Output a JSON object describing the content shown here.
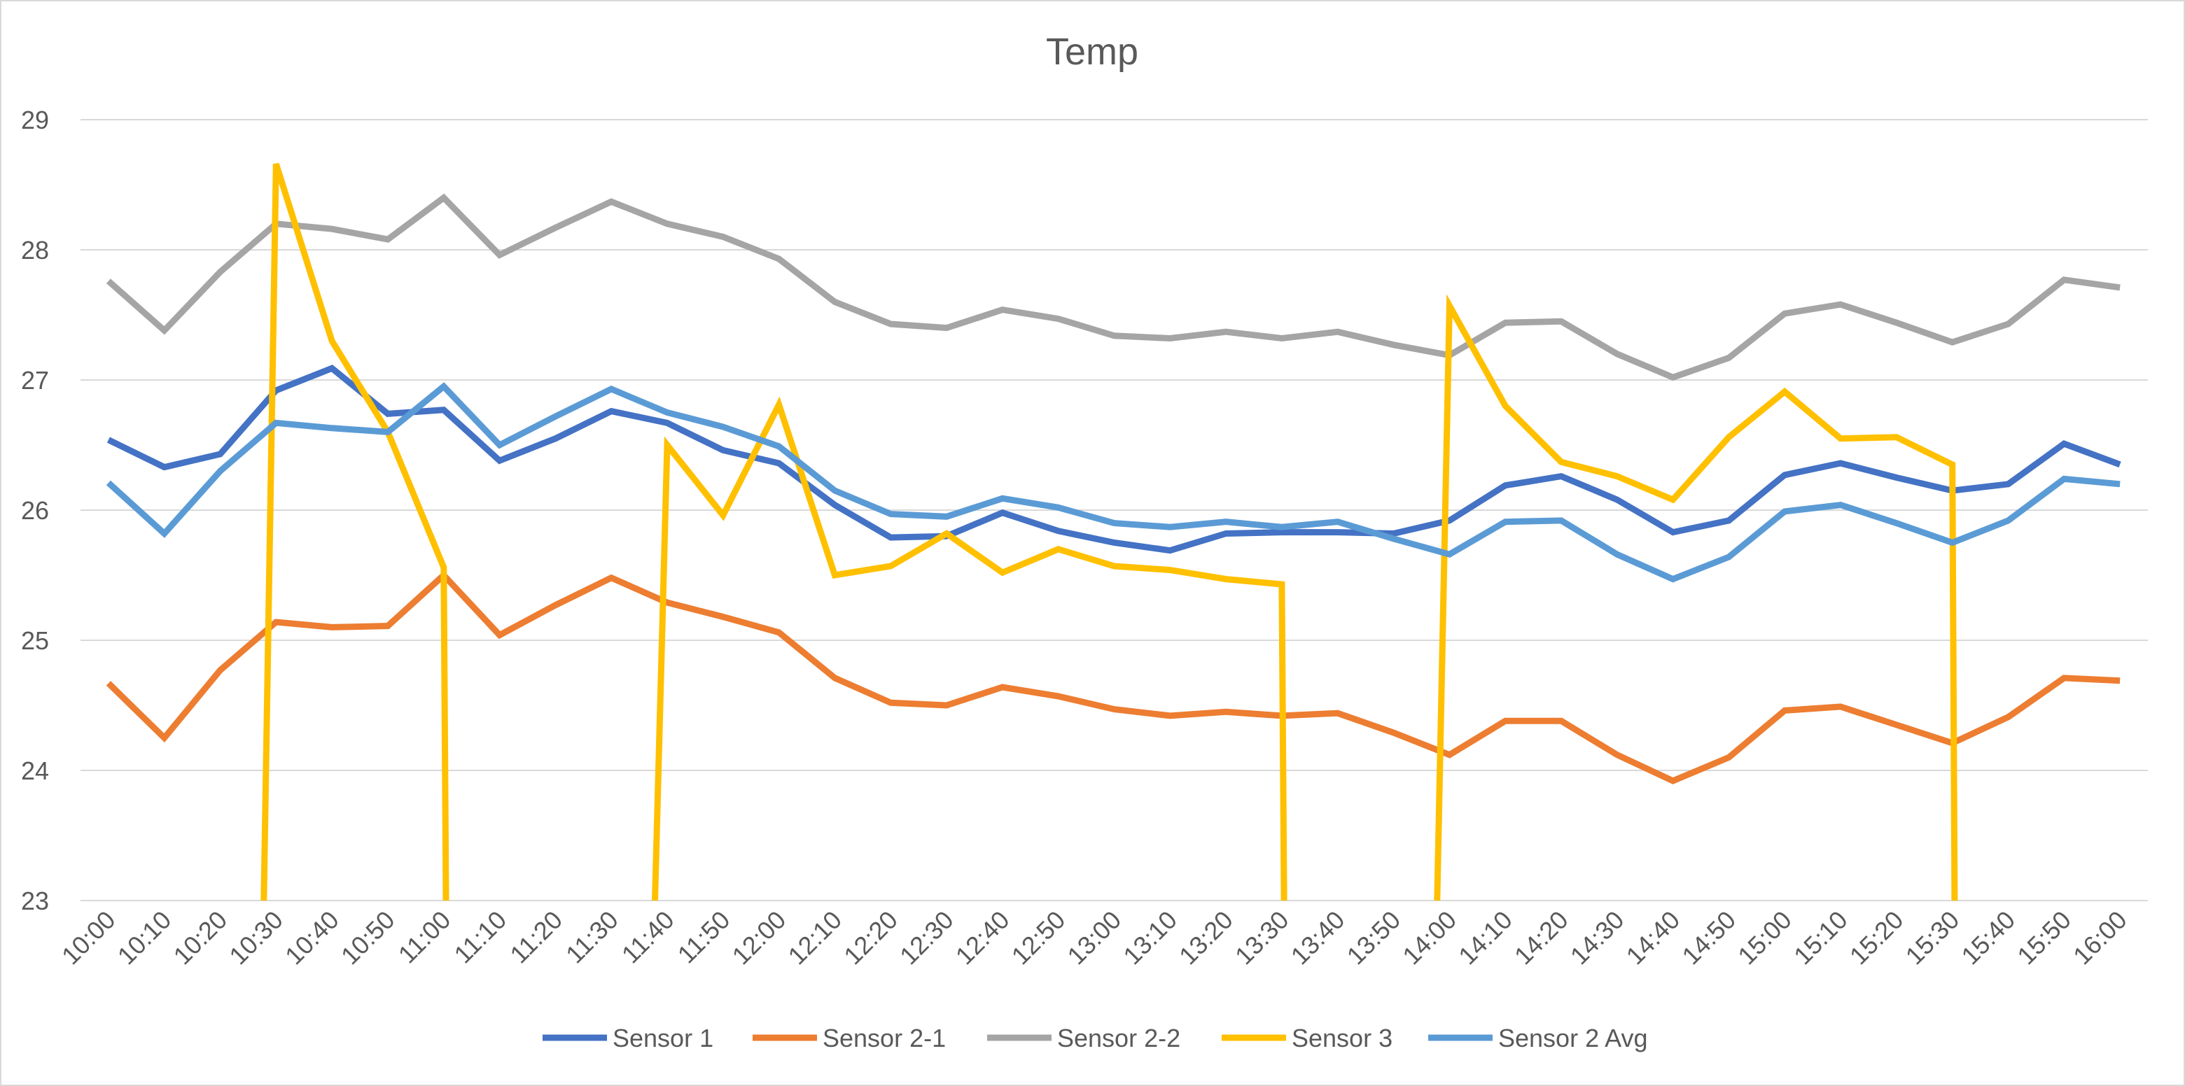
{
  "chart_data": {
    "type": "line",
    "title": "Temp",
    "xlabel": "",
    "ylabel": "",
    "ylim": [
      23,
      29
    ],
    "yticks": [
      "23",
      "24",
      "25",
      "26",
      "27",
      "28",
      "29"
    ],
    "grid": true,
    "legend_position": "bottom",
    "categories": [
      "10:00",
      "10:10",
      "10:20",
      "10:30",
      "10:40",
      "10:50",
      "11:00",
      "11:10",
      "11:20",
      "11:30",
      "11:40",
      "11:50",
      "12:00",
      "12:10",
      "12:20",
      "12:30",
      "12:40",
      "12:50",
      "13:00",
      "13:10",
      "13:20",
      "13:30",
      "13:40",
      "13:50",
      "14:00",
      "14:10",
      "14:20",
      "14:30",
      "14:40",
      "14:50",
      "15:00",
      "15:10",
      "15:20",
      "15:30",
      "15:40",
      "15:50",
      "16:00"
    ],
    "series": [
      {
        "name": "Sensor 1",
        "color": "#4472C4",
        "values": [
          26.54,
          26.33,
          26.43,
          26.92,
          27.09,
          26.74,
          26.77,
          26.38,
          26.55,
          26.76,
          26.67,
          26.46,
          26.36,
          26.04,
          25.79,
          25.8,
          25.98,
          25.84,
          25.75,
          25.69,
          25.82,
          25.83,
          25.83,
          25.82,
          25.92,
          26.19,
          26.26,
          26.08,
          25.83,
          25.92,
          26.27,
          26.36,
          26.25,
          26.15,
          26.2,
          26.51,
          26.35
        ]
      },
      {
        "name": "Sensor 2-1",
        "color": "#ED7D31",
        "values": [
          24.67,
          24.25,
          24.77,
          25.14,
          25.1,
          25.11,
          25.5,
          25.04,
          25.27,
          25.48,
          25.29,
          25.18,
          25.06,
          24.71,
          24.52,
          24.5,
          24.64,
          24.57,
          24.47,
          24.42,
          24.45,
          24.42,
          24.44,
          24.29,
          24.12,
          24.38,
          24.38,
          24.12,
          23.92,
          24.1,
          24.46,
          24.49,
          24.35,
          24.21,
          24.41,
          24.71,
          24.69
        ]
      },
      {
        "name": "Sensor 2-2",
        "color": "#A5A5A5",
        "values": [
          27.76,
          27.38,
          27.83,
          28.2,
          28.16,
          28.08,
          28.4,
          27.96,
          28.17,
          28.37,
          28.2,
          28.1,
          27.93,
          27.6,
          27.43,
          27.4,
          27.54,
          27.47,
          27.34,
          27.32,
          27.37,
          27.32,
          27.37,
          27.27,
          27.19,
          27.44,
          27.45,
          27.2,
          27.02,
          27.17,
          27.51,
          27.58,
          27.44,
          27.29,
          27.43,
          27.77,
          27.71
        ]
      },
      {
        "name": "Sensor 3",
        "color": "#FFC000",
        "values": [
          null,
          null,
          null,
          28.66,
          27.3,
          26.6,
          25.56,
          null,
          null,
          null,
          26.5,
          25.96,
          26.81,
          25.5,
          25.57,
          25.82,
          25.52,
          25.7,
          25.57,
          25.54,
          25.47,
          25.43,
          null,
          null,
          27.57,
          26.8,
          26.37,
          26.26,
          26.08,
          26.56,
          26.91,
          26.55,
          26.56,
          26.35,
          null,
          null,
          null
        ],
        "drop_to_axis": [
          3,
          6,
          10,
          21,
          24,
          33
        ]
      },
      {
        "name": "Sensor 2 Avg",
        "color": "#5B9BD5",
        "values": [
          26.21,
          25.82,
          26.3,
          26.67,
          26.63,
          26.6,
          26.95,
          26.5,
          26.72,
          26.93,
          26.75,
          26.64,
          26.49,
          26.15,
          25.97,
          25.95,
          26.09,
          26.02,
          25.9,
          25.87,
          25.91,
          25.87,
          25.91,
          25.78,
          25.66,
          25.91,
          25.92,
          25.66,
          25.47,
          25.64,
          25.99,
          26.04,
          25.9,
          25.75,
          25.92,
          26.24,
          26.2
        ]
      }
    ]
  }
}
